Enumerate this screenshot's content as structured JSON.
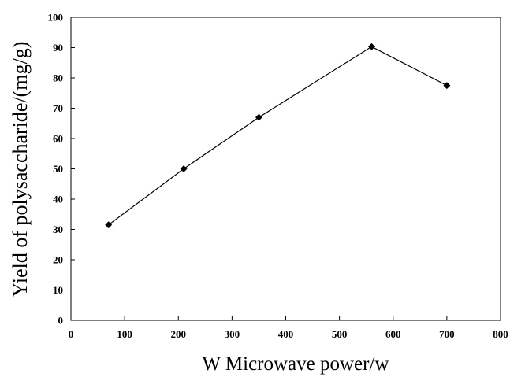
{
  "chart_data": {
    "type": "line",
    "x": [
      70,
      210,
      350,
      560,
      700
    ],
    "series": [
      {
        "values": [
          31.5,
          50,
          67,
          90.3,
          77.5
        ]
      }
    ],
    "xlabel": "W Microwave power/w",
    "ylabel": "Yield of polysaccharide/(mg/g)",
    "xlim": [
      0,
      800
    ],
    "ylim": [
      0,
      100
    ],
    "xticks": [
      0,
      100,
      200,
      300,
      400,
      500,
      600,
      700,
      800
    ],
    "yticks": [
      0,
      10,
      20,
      30,
      40,
      50,
      60,
      70,
      80,
      90,
      100
    ],
    "grid": false,
    "legend": "none",
    "marker": "diamond",
    "line_color": "#000000"
  }
}
